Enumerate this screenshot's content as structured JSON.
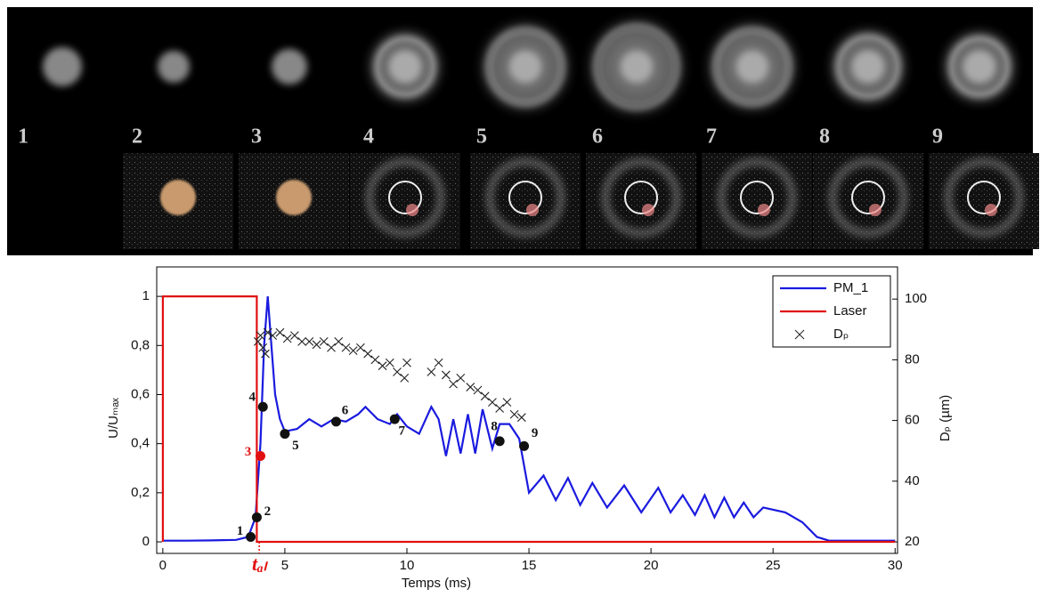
{
  "image_strip": {
    "labels": [
      "1",
      "2",
      "3",
      "4",
      "5",
      "6",
      "7",
      "8",
      "9"
    ]
  },
  "chart_data": {
    "type": "line",
    "x_label": "Temps (ms)",
    "y_label": "U/Uₘₐₓ",
    "y2_label": "Dₚ (µm)",
    "xlim": [
      -0.25,
      30.1
    ],
    "xticks": [
      0,
      5,
      10,
      15,
      20,
      25,
      30
    ],
    "ylim": [
      -0.047,
      1.12
    ],
    "yticks": [
      0,
      {
        "value": 0.2,
        "label": "0,2"
      },
      {
        "value": 0.4,
        "label": "0,4"
      },
      {
        "value": 0.6,
        "label": "0,6"
      },
      {
        "value": 0.8,
        "label": "0,8"
      },
      1
    ],
    "y2lim": [
      16.2,
      110.6
    ],
    "y2ticks": [
      20,
      40,
      60,
      80,
      100
    ],
    "legend": "upper right",
    "series": [
      {
        "name": "PM_1",
        "color": "#1a1adf",
        "x": [
          0,
          1,
          2,
          3,
          3.5,
          3.8,
          4.0,
          4.15,
          4.3,
          4.45,
          4.6,
          4.8,
          5,
          5.5,
          6,
          6.5,
          7,
          7.5,
          8,
          8.3,
          8.8,
          9.3,
          9.6,
          10,
          10.5,
          11,
          11.3,
          11.6,
          11.9,
          12.2,
          12.5,
          12.8,
          13.1,
          13.5,
          13.8,
          14.2,
          14.6,
          15,
          15.6,
          16.1,
          16.6,
          17.1,
          17.6,
          18.2,
          18.9,
          19.6,
          20.3,
          20.8,
          21.3,
          21.8,
          22.2,
          22.6,
          23,
          23.4,
          23.8,
          24.2,
          24.6,
          25.5,
          26.2,
          26.8,
          27.3,
          30
        ],
        "values": [
          0.005,
          0.005,
          0.006,
          0.008,
          0.02,
          0.1,
          0.4,
          0.8,
          1.0,
          0.8,
          0.6,
          0.5,
          0.45,
          0.46,
          0.5,
          0.47,
          0.5,
          0.49,
          0.52,
          0.55,
          0.5,
          0.48,
          0.52,
          0.47,
          0.44,
          0.55,
          0.5,
          0.35,
          0.5,
          0.36,
          0.52,
          0.36,
          0.54,
          0.38,
          0.48,
          0.48,
          0.42,
          0.2,
          0.27,
          0.17,
          0.26,
          0.15,
          0.24,
          0.14,
          0.23,
          0.12,
          0.22,
          0.12,
          0.19,
          0.11,
          0.19,
          0.1,
          0.18,
          0.1,
          0.16,
          0.1,
          0.14,
          0.12,
          0.08,
          0.02,
          0.005,
          0.005
        ]
      },
      {
        "name": "Laser",
        "color": "#e01010",
        "x": [
          0,
          0,
          3.85,
          3.85,
          30
        ],
        "values": [
          0,
          1,
          1,
          0,
          0
        ]
      },
      {
        "name": "Dₚ",
        "color": "#222222",
        "type": "scatter",
        "axis": "y2",
        "x": [
          3.9,
          4.0,
          4.1,
          4.2,
          4.3,
          4.5,
          4.8,
          5.1,
          5.4,
          5.7,
          6.0,
          6.3,
          6.6,
          6.9,
          7.2,
          7.5,
          7.8,
          8.1,
          8.4,
          8.7,
          9.0,
          9.3,
          9.6,
          9.9,
          10.0,
          11.0,
          11.3,
          11.6,
          11.9,
          12.2,
          12.6,
          12.9,
          13.2,
          13.5,
          13.8,
          14.1,
          14.4,
          14.7
        ],
        "values": [
          86,
          88,
          84,
          82,
          89,
          88,
          89,
          87,
          88,
          86,
          86,
          85,
          86,
          84,
          86,
          84,
          83,
          84,
          82,
          80,
          78,
          79,
          76,
          74,
          79,
          76,
          79,
          75,
          72,
          74,
          71,
          70,
          68,
          66,
          64,
          66,
          62,
          61
        ]
      }
    ],
    "annotations": [
      {
        "label": "1",
        "x": 3.6,
        "y": 0.02,
        "color": "#111111"
      },
      {
        "label": "2",
        "x": 3.85,
        "y": 0.1,
        "color": "#111111"
      },
      {
        "label": "3",
        "x": 4.0,
        "y": 0.35,
        "color": "#e01010"
      },
      {
        "label": "4",
        "x": 4.1,
        "y": 0.55,
        "color": "#111111"
      },
      {
        "label": "5",
        "x": 5.0,
        "y": 0.44,
        "color": "#111111"
      },
      {
        "label": "6",
        "x": 7.1,
        "y": 0.49,
        "color": "#111111"
      },
      {
        "label": "7",
        "x": 9.5,
        "y": 0.5,
        "color": "#111111"
      },
      {
        "label": "8",
        "x": 13.8,
        "y": 0.41,
        "color": "#111111"
      },
      {
        "label": "9",
        "x": 14.8,
        "y": 0.39,
        "color": "#111111"
      }
    ],
    "vline": {
      "x": 3.95,
      "label": "tₐₗ",
      "color": "#e01010"
    }
  }
}
